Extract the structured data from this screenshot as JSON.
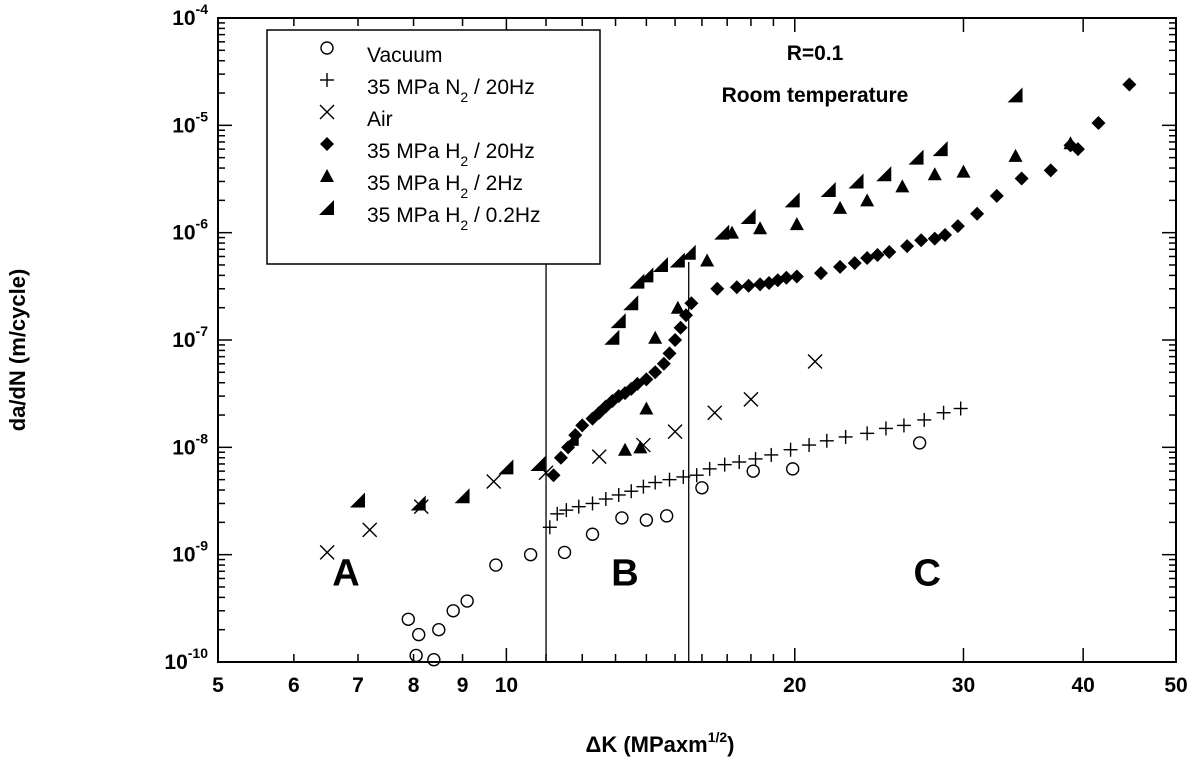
{
  "chart_data": {
    "type": "scatter",
    "x_scale": "log",
    "y_scale": "log",
    "xlim": [
      5,
      50
    ],
    "ylim": [
      1e-10,
      0.0001
    ],
    "x_tick_labels": [
      {
        "value": 5,
        "text": "5"
      },
      {
        "value": 6,
        "text": "6"
      },
      {
        "value": 7,
        "text": "7"
      },
      {
        "value": 8,
        "text": "8"
      },
      {
        "value": 9,
        "text": "9"
      },
      {
        "value": 10,
        "text": "10"
      },
      {
        "value": 20,
        "text": "20"
      },
      {
        "value": 30,
        "text": "30"
      },
      {
        "value": 40,
        "text": "40"
      },
      {
        "value": 50,
        "text": "50"
      }
    ],
    "y_tick_labels": [
      {
        "value": 0.0001,
        "base": "10",
        "exp": "-4"
      },
      {
        "value": 1e-05,
        "base": "10",
        "exp": "-5"
      },
      {
        "value": 1e-06,
        "base": "10",
        "exp": "-6"
      },
      {
        "value": 1e-07,
        "base": "10",
        "exp": "-7"
      },
      {
        "value": 1e-08,
        "base": "10",
        "exp": "-8"
      },
      {
        "value": 1e-09,
        "base": "10",
        "exp": "-9"
      },
      {
        "value": 1e-10,
        "base": "10",
        "exp": "-10"
      }
    ],
    "xlabel": {
      "main": "ΔK (MPaxm",
      "sup": "1/2",
      "close": ")"
    },
    "ylabel": "da/dN (m/cycle)",
    "legend_position": "top-left",
    "annotations": {
      "line1": "R=0.1",
      "line2": "Room temperature"
    },
    "regions": {
      "labels": [
        {
          "text": "A",
          "x": 6.8,
          "y": 7e-10
        },
        {
          "text": "B",
          "x": 13.3,
          "y": 7e-10
        },
        {
          "text": "C",
          "x": 27.5,
          "y": 7e-10
        }
      ],
      "boundaries": [
        11.0,
        15.5
      ]
    },
    "series": [
      {
        "name": "Vacuum",
        "legend": {
          "pre": "Vacuum",
          "sub": "",
          "post": ""
        },
        "marker": "circle",
        "points": [
          [
            7.9,
            2.5e-10
          ],
          [
            8.1,
            1.8e-10
          ],
          [
            8.05,
            1.15e-10
          ],
          [
            8.4,
            1.05e-10
          ],
          [
            8.5,
            2e-10
          ],
          [
            8.8,
            3e-10
          ],
          [
            9.1,
            3.7e-10
          ],
          [
            9.75,
            8e-10
          ],
          [
            10.6,
            1e-09
          ],
          [
            11.5,
            1.05e-09
          ],
          [
            12.3,
            1.55e-09
          ],
          [
            13.2,
            2.2e-09
          ],
          [
            14.0,
            2.1e-09
          ],
          [
            14.7,
            2.3e-09
          ],
          [
            16.0,
            4.2e-09
          ],
          [
            18.1,
            6e-09
          ],
          [
            19.9,
            6.3e-09
          ],
          [
            27.0,
            1.1e-08
          ]
        ]
      },
      {
        "name": "35 MPa N2 / 20Hz",
        "legend": {
          "pre": "35 MPa N",
          "sub": "2",
          "post": " / 20Hz"
        },
        "marker": "plus",
        "points": [
          [
            11.1,
            1.8e-09
          ],
          [
            11.3,
            2.4e-09
          ],
          [
            11.55,
            2.6e-09
          ],
          [
            11.9,
            2.8e-09
          ],
          [
            12.3,
            3e-09
          ],
          [
            12.7,
            3.3e-09
          ],
          [
            13.1,
            3.6e-09
          ],
          [
            13.5,
            3.9e-09
          ],
          [
            13.9,
            4.3e-09
          ],
          [
            14.3,
            4.7e-09
          ],
          [
            14.8,
            5e-09
          ],
          [
            15.3,
            5.3e-09
          ],
          [
            15.8,
            5.5e-09
          ],
          [
            16.3,
            6.3e-09
          ],
          [
            16.9,
            6.9e-09
          ],
          [
            17.5,
            7.3e-09
          ],
          [
            18.2,
            7.8e-09
          ],
          [
            18.9,
            8.5e-09
          ],
          [
            19.8,
            9.5e-09
          ],
          [
            20.7,
            1.05e-08
          ],
          [
            21.6,
            1.15e-08
          ],
          [
            22.6,
            1.25e-08
          ],
          [
            23.8,
            1.35e-08
          ],
          [
            24.9,
            1.5e-08
          ],
          [
            26.0,
            1.6e-08
          ],
          [
            27.3,
            1.8e-08
          ],
          [
            28.6,
            2.1e-08
          ],
          [
            29.8,
            2.3e-08
          ]
        ]
      },
      {
        "name": "Air",
        "legend": {
          "pre": "Air",
          "sub": "",
          "post": ""
        },
        "marker": "x",
        "points": [
          [
            6.5,
            1.05e-09
          ],
          [
            7.2,
            1.7e-09
          ],
          [
            8.15,
            2.8e-09
          ],
          [
            9.7,
            4.8e-09
          ],
          [
            11.0,
            5.8e-09
          ],
          [
            12.5,
            8.2e-09
          ],
          [
            13.9,
            1.05e-08
          ],
          [
            15.0,
            1.4e-08
          ],
          [
            16.5,
            2.1e-08
          ],
          [
            18.0,
            2.8e-08
          ],
          [
            21.0,
            6.3e-08
          ]
        ]
      },
      {
        "name": "35 MPa H2 / 20Hz",
        "legend": {
          "pre": "35 MPa H",
          "sub": "2",
          "post": " / 20Hz"
        },
        "marker": "diamond",
        "points": [
          [
            11.2,
            5.5e-09
          ],
          [
            11.4,
            8e-09
          ],
          [
            11.6,
            1e-08
          ],
          [
            11.8,
            1.3e-08
          ],
          [
            12.0,
            1.6e-08
          ],
          [
            12.3,
            1.85e-08
          ],
          [
            12.5,
            2.1e-08
          ],
          [
            12.7,
            2.4e-08
          ],
          [
            12.9,
            2.7e-08
          ],
          [
            13.1,
            3e-08
          ],
          [
            13.3,
            3.2e-08
          ],
          [
            13.5,
            3.5e-08
          ],
          [
            13.7,
            3.9e-08
          ],
          [
            14.0,
            4.3e-08
          ],
          [
            14.3,
            5e-08
          ],
          [
            14.6,
            6e-08
          ],
          [
            14.8,
            7.5e-08
          ],
          [
            15.0,
            1e-07
          ],
          [
            15.2,
            1.3e-07
          ],
          [
            15.4,
            1.7e-07
          ],
          [
            15.6,
            2.2e-07
          ],
          [
            16.6,
            3e-07
          ],
          [
            17.4,
            3.1e-07
          ],
          [
            17.9,
            3.2e-07
          ],
          [
            18.4,
            3.3e-07
          ],
          [
            18.8,
            3.4e-07
          ],
          [
            19.2,
            3.6e-07
          ],
          [
            19.6,
            3.8e-07
          ],
          [
            20.1,
            3.9e-07
          ],
          [
            21.3,
            4.2e-07
          ],
          [
            22.3,
            4.8e-07
          ],
          [
            23.1,
            5.2e-07
          ],
          [
            23.8,
            5.8e-07
          ],
          [
            24.4,
            6.2e-07
          ],
          [
            25.1,
            6.6e-07
          ],
          [
            26.2,
            7.5e-07
          ],
          [
            27.1,
            8.5e-07
          ],
          [
            28.0,
            8.8e-07
          ],
          [
            28.7,
            9.5e-07
          ],
          [
            29.6,
            1.15e-06
          ],
          [
            31.0,
            1.5e-06
          ],
          [
            32.5,
            2.2e-06
          ],
          [
            34.5,
            3.2e-06
          ],
          [
            37.0,
            3.8e-06
          ],
          [
            38.8,
            6.5e-06
          ],
          [
            39.5,
            6e-06
          ],
          [
            41.5,
            1.05e-05
          ],
          [
            44.7,
            2.4e-05
          ]
        ]
      },
      {
        "name": "35 MPa H2 / 2Hz",
        "legend": {
          "pre": "35 MPa H",
          "sub": "2",
          "post": " / 2Hz"
        },
        "marker": "triangle",
        "points": [
          [
            13.3,
            9.5e-09
          ],
          [
            13.8,
            1e-08
          ],
          [
            14.0,
            2.3e-08
          ],
          [
            14.3,
            1.05e-07
          ],
          [
            15.1,
            2e-07
          ],
          [
            16.2,
            5.5e-07
          ],
          [
            17.2,
            1e-06
          ],
          [
            18.4,
            1.1e-06
          ],
          [
            20.1,
            1.2e-06
          ],
          [
            22.3,
            1.7e-06
          ],
          [
            23.8,
            2e-06
          ],
          [
            25.9,
            2.7e-06
          ],
          [
            28.0,
            3.5e-06
          ],
          [
            30.0,
            3.7e-06
          ],
          [
            34.0,
            5.2e-06
          ],
          [
            38.8,
            6.8e-06
          ]
        ]
      },
      {
        "name": "35 MPa H2 / 0.2Hz",
        "legend": {
          "pre": "35 MPa H",
          "sub": "2",
          "post": " / 0.2Hz"
        },
        "marker": "halftriangle",
        "points": [
          [
            7.0,
            3.2e-09
          ],
          [
            8.1,
            3e-09
          ],
          [
            9.0,
            3.5e-09
          ],
          [
            10.0,
            6.5e-09
          ],
          [
            10.8,
            7e-09
          ],
          [
            11.7,
            1.2e-08
          ],
          [
            12.9,
            1.05e-07
          ],
          [
            13.1,
            1.5e-07
          ],
          [
            13.5,
            2.2e-07
          ],
          [
            13.7,
            3.5e-07
          ],
          [
            14.0,
            4e-07
          ],
          [
            14.5,
            5e-07
          ],
          [
            15.1,
            5.5e-07
          ],
          [
            15.5,
            6.5e-07
          ],
          [
            16.8,
            1e-06
          ],
          [
            17.9,
            1.4e-06
          ],
          [
            19.9,
            2e-06
          ],
          [
            21.7,
            2.5e-06
          ],
          [
            23.2,
            3e-06
          ],
          [
            24.8,
            3.5e-06
          ],
          [
            26.8,
            5e-06
          ],
          [
            28.4,
            6e-06
          ],
          [
            34.0,
            1.9e-05
          ]
        ]
      }
    ]
  }
}
